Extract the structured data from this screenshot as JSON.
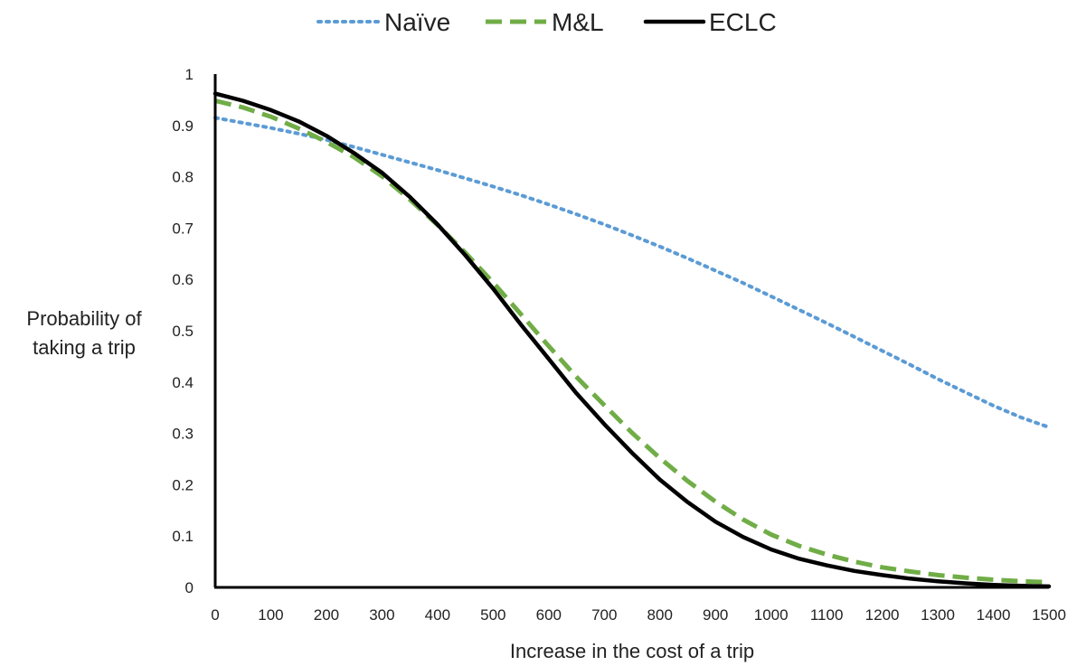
{
  "chart_data": {
    "type": "line",
    "title": "",
    "xlabel": "Increase in the cost of a trip",
    "ylabel_lines": [
      "Probability of",
      "taking a trip"
    ],
    "xlim": [
      0,
      1500
    ],
    "ylim": [
      0,
      1
    ],
    "x_ticks": [
      "0",
      "100",
      "200",
      "300",
      "400",
      "500",
      "600",
      "700",
      "800",
      "900",
      "1000",
      "1100",
      "1200",
      "1300",
      "1400",
      "1500"
    ],
    "y_ticks": [
      "0",
      "0.1",
      "0.2",
      "0.3",
      "0.4",
      "0.5",
      "0.6",
      "0.7",
      "0.8",
      "0.9",
      "1"
    ],
    "grid": false,
    "legend_position": "top-center",
    "x": [
      0,
      50,
      100,
      150,
      200,
      250,
      300,
      350,
      400,
      450,
      500,
      550,
      600,
      650,
      700,
      750,
      800,
      850,
      900,
      950,
      1000,
      1050,
      1100,
      1150,
      1200,
      1250,
      1300,
      1350,
      1400,
      1450,
      1500
    ],
    "series": [
      {
        "name": "Naïve",
        "color": "#5b9bd5",
        "style": "dotted",
        "values": [
          0.915,
          0.905,
          0.895,
          0.884,
          0.872,
          0.858,
          0.843,
          0.828,
          0.813,
          0.797,
          0.781,
          0.764,
          0.746,
          0.727,
          0.707,
          0.686,
          0.664,
          0.641,
          0.617,
          0.593,
          0.567,
          0.541,
          0.515,
          0.488,
          0.461,
          0.434,
          0.406,
          0.38,
          0.354,
          0.331,
          0.312
        ]
      },
      {
        "name": "M&L",
        "color": "#70ad47",
        "style": "dashed",
        "values": [
          0.948,
          0.935,
          0.917,
          0.894,
          0.868,
          0.838,
          0.801,
          0.756,
          0.706,
          0.652,
          0.594,
          0.532,
          0.47,
          0.41,
          0.355,
          0.301,
          0.252,
          0.207,
          0.167,
          0.132,
          0.103,
          0.081,
          0.064,
          0.05,
          0.039,
          0.031,
          0.024,
          0.019,
          0.015,
          0.012,
          0.01
        ]
      },
      {
        "name": "ECLC",
        "color": "#000000",
        "style": "solid",
        "values": [
          0.962,
          0.948,
          0.93,
          0.908,
          0.88,
          0.846,
          0.808,
          0.761,
          0.707,
          0.647,
          0.582,
          0.512,
          0.445,
          0.378,
          0.318,
          0.262,
          0.21,
          0.166,
          0.128,
          0.098,
          0.074,
          0.056,
          0.043,
          0.032,
          0.024,
          0.017,
          0.012,
          0.008,
          0.005,
          0.003,
          0.002
        ]
      }
    ]
  }
}
